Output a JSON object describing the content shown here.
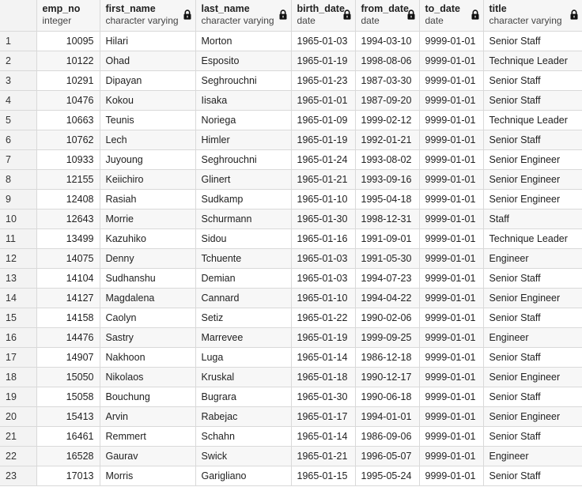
{
  "icons": {
    "column_lock": "lock-icon"
  },
  "columns": [
    {
      "key": "emp_no",
      "name": "emp_no",
      "type": "integer",
      "locked": false
    },
    {
      "key": "first_name",
      "name": "first_name",
      "type": "character varying",
      "locked": true
    },
    {
      "key": "last_name",
      "name": "last_name",
      "type": "character varying",
      "locked": true
    },
    {
      "key": "birth_date",
      "name": "birth_date",
      "type": "date",
      "locked": true
    },
    {
      "key": "from_date",
      "name": "from_date",
      "type": "date",
      "locked": true
    },
    {
      "key": "to_date",
      "name": "to_date",
      "type": "date",
      "locked": true
    },
    {
      "key": "title",
      "name": "title",
      "type": "character varying",
      "locked": true
    }
  ],
  "rows": [
    {
      "n": "1",
      "emp_no": "10095",
      "first_name": "Hilari",
      "last_name": "Morton",
      "birth_date": "1965-01-03",
      "from_date": "1994-03-10",
      "to_date": "9999-01-01",
      "title": "Senior Staff"
    },
    {
      "n": "2",
      "emp_no": "10122",
      "first_name": "Ohad",
      "last_name": "Esposito",
      "birth_date": "1965-01-19",
      "from_date": "1998-08-06",
      "to_date": "9999-01-01",
      "title": "Technique Leader"
    },
    {
      "n": "3",
      "emp_no": "10291",
      "first_name": "Dipayan",
      "last_name": "Seghrouchni",
      "birth_date": "1965-01-23",
      "from_date": "1987-03-30",
      "to_date": "9999-01-01",
      "title": "Senior Staff"
    },
    {
      "n": "4",
      "emp_no": "10476",
      "first_name": "Kokou",
      "last_name": "Iisaka",
      "birth_date": "1965-01-01",
      "from_date": "1987-09-20",
      "to_date": "9999-01-01",
      "title": "Senior Staff"
    },
    {
      "n": "5",
      "emp_no": "10663",
      "first_name": "Teunis",
      "last_name": "Noriega",
      "birth_date": "1965-01-09",
      "from_date": "1999-02-12",
      "to_date": "9999-01-01",
      "title": "Technique Leader"
    },
    {
      "n": "6",
      "emp_no": "10762",
      "first_name": "Lech",
      "last_name": "Himler",
      "birth_date": "1965-01-19",
      "from_date": "1992-01-21",
      "to_date": "9999-01-01",
      "title": "Senior Staff"
    },
    {
      "n": "7",
      "emp_no": "10933",
      "first_name": "Juyoung",
      "last_name": "Seghrouchni",
      "birth_date": "1965-01-24",
      "from_date": "1993-08-02",
      "to_date": "9999-01-01",
      "title": "Senior Engineer"
    },
    {
      "n": "8",
      "emp_no": "12155",
      "first_name": "Keiichiro",
      "last_name": "Glinert",
      "birth_date": "1965-01-21",
      "from_date": "1993-09-16",
      "to_date": "9999-01-01",
      "title": "Senior Engineer"
    },
    {
      "n": "9",
      "emp_no": "12408",
      "first_name": "Rasiah",
      "last_name": "Sudkamp",
      "birth_date": "1965-01-10",
      "from_date": "1995-04-18",
      "to_date": "9999-01-01",
      "title": "Senior Engineer"
    },
    {
      "n": "10",
      "emp_no": "12643",
      "first_name": "Morrie",
      "last_name": "Schurmann",
      "birth_date": "1965-01-30",
      "from_date": "1998-12-31",
      "to_date": "9999-01-01",
      "title": "Staff"
    },
    {
      "n": "11",
      "emp_no": "13499",
      "first_name": "Kazuhiko",
      "last_name": "Sidou",
      "birth_date": "1965-01-16",
      "from_date": "1991-09-01",
      "to_date": "9999-01-01",
      "title": "Technique Leader"
    },
    {
      "n": "12",
      "emp_no": "14075",
      "first_name": "Denny",
      "last_name": "Tchuente",
      "birth_date": "1965-01-03",
      "from_date": "1991-05-30",
      "to_date": "9999-01-01",
      "title": "Engineer"
    },
    {
      "n": "13",
      "emp_no": "14104",
      "first_name": "Sudhanshu",
      "last_name": "Demian",
      "birth_date": "1965-01-03",
      "from_date": "1994-07-23",
      "to_date": "9999-01-01",
      "title": "Senior Staff"
    },
    {
      "n": "14",
      "emp_no": "14127",
      "first_name": "Magdalena",
      "last_name": "Cannard",
      "birth_date": "1965-01-10",
      "from_date": "1994-04-22",
      "to_date": "9999-01-01",
      "title": "Senior Engineer"
    },
    {
      "n": "15",
      "emp_no": "14158",
      "first_name": "Caolyn",
      "last_name": "Setiz",
      "birth_date": "1965-01-22",
      "from_date": "1990-02-06",
      "to_date": "9999-01-01",
      "title": "Senior Staff"
    },
    {
      "n": "16",
      "emp_no": "14476",
      "first_name": "Sastry",
      "last_name": "Marrevee",
      "birth_date": "1965-01-19",
      "from_date": "1999-09-25",
      "to_date": "9999-01-01",
      "title": "Engineer"
    },
    {
      "n": "17",
      "emp_no": "14907",
      "first_name": "Nakhoon",
      "last_name": "Luga",
      "birth_date": "1965-01-14",
      "from_date": "1986-12-18",
      "to_date": "9999-01-01",
      "title": "Senior Staff"
    },
    {
      "n": "18",
      "emp_no": "15050",
      "first_name": "Nikolaos",
      "last_name": "Kruskal",
      "birth_date": "1965-01-18",
      "from_date": "1990-12-17",
      "to_date": "9999-01-01",
      "title": "Senior Engineer"
    },
    {
      "n": "19",
      "emp_no": "15058",
      "first_name": "Bouchung",
      "last_name": "Bugrara",
      "birth_date": "1965-01-30",
      "from_date": "1990-06-18",
      "to_date": "9999-01-01",
      "title": "Senior Staff"
    },
    {
      "n": "20",
      "emp_no": "15413",
      "first_name": "Arvin",
      "last_name": "Rabejac",
      "birth_date": "1965-01-17",
      "from_date": "1994-01-01",
      "to_date": "9999-01-01",
      "title": "Senior Engineer"
    },
    {
      "n": "21",
      "emp_no": "16461",
      "first_name": "Remmert",
      "last_name": "Schahn",
      "birth_date": "1965-01-14",
      "from_date": "1986-09-06",
      "to_date": "9999-01-01",
      "title": "Senior Staff"
    },
    {
      "n": "22",
      "emp_no": "16528",
      "first_name": "Gaurav",
      "last_name": "Swick",
      "birth_date": "1965-01-21",
      "from_date": "1996-05-07",
      "to_date": "9999-01-01",
      "title": "Engineer"
    },
    {
      "n": "23",
      "emp_no": "17013",
      "first_name": "Morris",
      "last_name": "Garigliano",
      "birth_date": "1965-01-15",
      "from_date": "1995-05-24",
      "to_date": "9999-01-01",
      "title": "Senior Staff"
    }
  ]
}
